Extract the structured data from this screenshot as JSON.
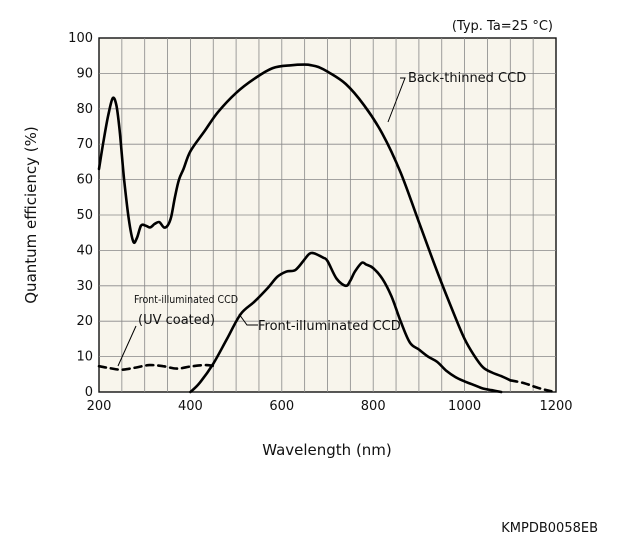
{
  "chart_data": {
    "type": "line",
    "condition_note": "(Typ. Ta=25 °C)",
    "xlabel": "Wavelength (nm)",
    "ylabel": "Quantum efficiency (%)",
    "xlim": [
      200,
      1200
    ],
    "ylim": [
      0,
      100
    ],
    "xticks": [
      200,
      400,
      600,
      800,
      1000,
      1200
    ],
    "yticks": [
      0,
      10,
      20,
      30,
      40,
      50,
      60,
      70,
      80,
      90,
      100
    ],
    "grid": true,
    "series": [
      {
        "name": "Back-thinned CCD",
        "style": "solid",
        "x": [
          200,
          210,
          220,
          230,
          238,
          245,
          255,
          265,
          275,
          283,
          292,
          302,
          312,
          322,
          332,
          342,
          350,
          358,
          366,
          375,
          385,
          400,
          430,
          460,
          500,
          540,
          580,
          620,
          650,
          665,
          680,
          700,
          740,
          780,
          820,
          860,
          900,
          940,
          980,
          1000,
          1020,
          1040,
          1060,
          1080,
          1100
        ],
        "y": [
          63,
          71,
          78,
          83,
          81,
          74,
          60,
          49,
          42.5,
          43.5,
          47,
          47,
          46.5,
          47.5,
          48,
          46.5,
          47,
          49.5,
          55,
          60,
          63,
          68,
          73.5,
          79,
          84.5,
          88.5,
          91.5,
          92.3,
          92.5,
          92.3,
          91.8,
          90.5,
          87,
          81,
          73,
          62,
          48,
          34,
          21,
          15,
          10.5,
          7,
          5.5,
          4.5,
          3.3
        ]
      },
      {
        "name": "Back-thinned CCD (extrapolated)",
        "style": "dashed",
        "x": [
          1100,
          1130,
          1160,
          1190
        ],
        "y": [
          3.3,
          2.5,
          1.2,
          0.2
        ]
      },
      {
        "name": "Front-illuminated CCD",
        "style": "solid",
        "x": [
          400,
          420,
          450,
          480,
          510,
          540,
          570,
          590,
          610,
          630,
          650,
          660,
          670,
          690,
          700,
          720,
          740,
          750,
          760,
          775,
          785,
          800,
          820,
          840,
          860,
          880,
          900,
          920,
          940,
          960,
          980,
          1000,
          1020,
          1040,
          1060,
          1080
        ],
        "y": [
          0,
          2.5,
          8,
          15,
          22,
          25.5,
          29.5,
          32.5,
          34,
          34.5,
          37.5,
          39,
          39.2,
          38,
          37,
          32,
          30,
          31.5,
          34,
          36.5,
          36,
          35,
          32,
          27,
          20,
          14,
          12,
          10,
          8.5,
          6,
          4.2,
          3,
          2,
          1,
          0.5,
          0
        ]
      },
      {
        "name": "Front-illuminated CCD (UV coated)",
        "style": "dashed",
        "x": [
          200,
          225,
          250,
          280,
          310,
          340,
          370,
          400,
          430,
          450
        ],
        "y": [
          7.3,
          6.7,
          6.3,
          6.9,
          7.6,
          7.3,
          6.6,
          7.2,
          7.6,
          7.4
        ]
      }
    ],
    "annotations": {
      "back_thinned": "Back-thinned CCD",
      "front_illuminated": "Front-illuminated CCD",
      "front_uv_line1": "Front-illuminated CCD",
      "front_uv_line2": "(UV coated)"
    }
  },
  "footer_code": "KMPDB0058EB"
}
